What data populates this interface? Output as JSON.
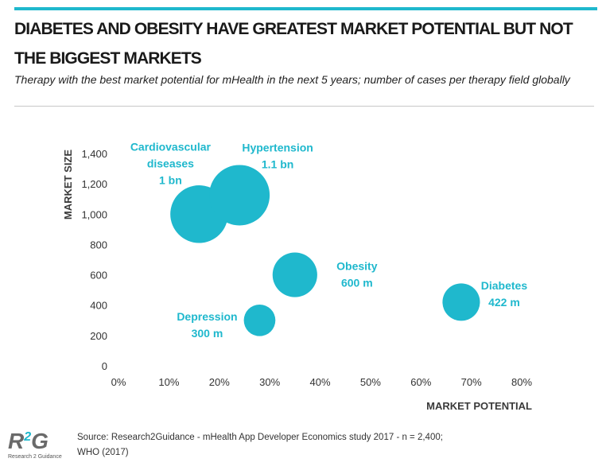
{
  "header": {
    "title": "Diabetes and obesity have greatest market potential but not the biggest markets",
    "subtitle": "Therapy with the best market potential for mHealth in the next 5 years; number of cases per therapy field globally"
  },
  "footer": {
    "source_line1": "Source: Research2Guidance - mHealth App Developer Economics study 2017 - n = 2,400;",
    "source_line2": "WHO (2017)",
    "logo_text_left": "R",
    "logo_text_mid": "2",
    "logo_text_right": "G",
    "logo_subtext": "Research 2 Guidance"
  },
  "colors": {
    "bubble": "#1fb8cd",
    "label": "#1fb8cd",
    "accent_rule": "#1fb8cd"
  },
  "chart_data": {
    "type": "scatter",
    "subtype": "bubble",
    "xlabel": "MARKET POTENTIAL",
    "ylabel": "MARKET SIZE",
    "xlim": [
      0,
      80
    ],
    "ylim": [
      0,
      1400
    ],
    "x_ticks": [
      "0%",
      "10%",
      "20%",
      "30%",
      "40%",
      "50%",
      "60%",
      "70%",
      "80%"
    ],
    "y_ticks": [
      "0",
      "200",
      "400",
      "600",
      "800",
      "1,000",
      "1,200",
      "1,400"
    ],
    "grid": false,
    "legend": "none",
    "points": [
      {
        "label_lines": [
          "Cardiovascular",
          "diseases",
          "1 bn"
        ],
        "x": 16,
        "y": 1000,
        "size": 1000
      },
      {
        "label_lines": [
          "Hypertension",
          "1.1 bn"
        ],
        "x": 24,
        "y": 1125,
        "size": 1100
      },
      {
        "label_lines": [
          "Obesity",
          "600 m"
        ],
        "x": 35,
        "y": 600,
        "size": 600
      },
      {
        "label_lines": [
          "Depression",
          "300 m"
        ],
        "x": 28,
        "y": 300,
        "size": 300
      },
      {
        "label_lines": [
          "Diabetes",
          "422 m"
        ],
        "x": 68,
        "y": 420,
        "size": 422
      }
    ]
  }
}
